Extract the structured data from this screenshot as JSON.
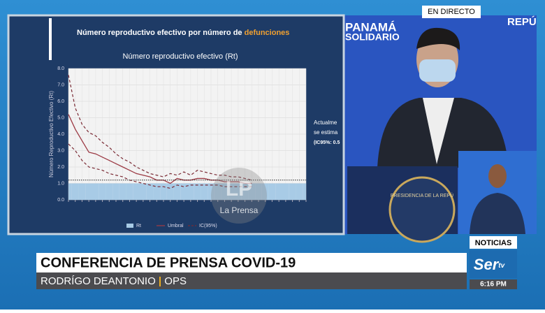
{
  "broadcast": {
    "live": "EN DIRECTO",
    "backdrop_left": "PANAMÁ",
    "backdrop_left2": "SOLIDARIO",
    "backdrop_right": "REPÚ",
    "podium": "PRESIDENCIA DE LA REPÚ",
    "slide_title": "Número reproductivo efectivo por número de",
    "slide_title_highlight": "defunciones",
    "side_text": [
      "Actualme",
      "se estima",
      "(IC95%: 0.5"
    ],
    "watermark": "La Prensa",
    "watermark_logo": "LP",
    "section": "NOTICIAS",
    "headline": "CONFERENCIA DE PRENSA COVID-19",
    "speaker": "RODRÍGO DEANTONIO",
    "affiliation": "OPS",
    "channel": "Ser",
    "channel_suffix": "tv",
    "time": "6:16 PM"
  },
  "chart_data": {
    "type": "line",
    "title": "Número reproductivo efectivo (Rt)",
    "y_label": "Número Reproductivo Efectivo (Rt)",
    "categories": [
      null,
      null,
      null,
      null,
      null,
      null,
      null,
      null,
      null,
      null,
      null,
      null,
      null,
      null,
      null,
      null,
      null,
      null,
      null,
      null,
      null,
      null,
      null,
      null,
      null,
      null,
      null,
      null,
      null,
      null,
      null,
      null,
      null,
      null,
      null,
      null
    ],
    "series": [
      {
        "name": "Rt",
        "color": "#a8cbe6",
        "area": true,
        "values": [
          1,
          1,
          1,
          1,
          1,
          1,
          1,
          1,
          1,
          1,
          1,
          1,
          1,
          1,
          1,
          1,
          1,
          1,
          1,
          1,
          1,
          1,
          1,
          1,
          1,
          1,
          1,
          1,
          1,
          1,
          1,
          1,
          1,
          1,
          1,
          1
        ]
      },
      {
        "name": "Umbral",
        "color": "#9c3a44",
        "values": [
          5.2,
          4.3,
          3.6,
          2.9,
          2.8,
          2.6,
          2.4,
          2.2,
          2.0,
          1.8,
          1.6,
          1.5,
          1.4,
          1.2,
          1.2,
          1.0,
          1.3,
          1.2,
          1.2,
          1.3,
          1.3,
          1.2,
          1.2,
          1.1,
          1.1,
          1.1,
          1.0,
          1.0,
          null,
          null,
          null,
          null,
          null,
          null,
          null,
          null
        ]
      },
      {
        "name": "IC(95%)",
        "color": "#7a2a34",
        "dashed": true,
        "upper": [
          7.6,
          5.6,
          4.6,
          4.1,
          3.9,
          3.5,
          3.2,
          2.8,
          2.5,
          2.3,
          2.0,
          1.8,
          1.6,
          1.5,
          1.4,
          1.6,
          1.5,
          1.7,
          1.5,
          1.8,
          1.7,
          1.6,
          1.5,
          1.5,
          1.4,
          1.4,
          1.3,
          1.2,
          null,
          null,
          null,
          null,
          null,
          null,
          null,
          null
        ],
        "lower": [
          3.4,
          3.0,
          2.4,
          2.0,
          1.9,
          1.8,
          1.6,
          1.5,
          1.4,
          1.2,
          1.1,
          1.0,
          0.9,
          0.8,
          0.8,
          0.7,
          0.9,
          0.8,
          0.9,
          0.9,
          0.9,
          0.9,
          0.9,
          0.8,
          0.8,
          0.8,
          0.8,
          0.8,
          null,
          null,
          null,
          null,
          null,
          null,
          null,
          null
        ]
      }
    ],
    "threshold": 1.2,
    "ylim": [
      0,
      8
    ],
    "yticks": [
      {
        "value": 0,
        "label": "0.0"
      },
      {
        "value": 1,
        "label": "1.0"
      },
      {
        "value": 2,
        "label": "2.0"
      },
      {
        "value": 3,
        "label": "3.0"
      },
      {
        "value": 4,
        "label": "4.0"
      },
      {
        "value": 5,
        "label": "5.0"
      },
      {
        "value": 6,
        "label": "6.0"
      },
      {
        "value": 7,
        "label": "7.0"
      },
      {
        "value": 8,
        "label": "8.0"
      }
    ],
    "grid": true
  }
}
